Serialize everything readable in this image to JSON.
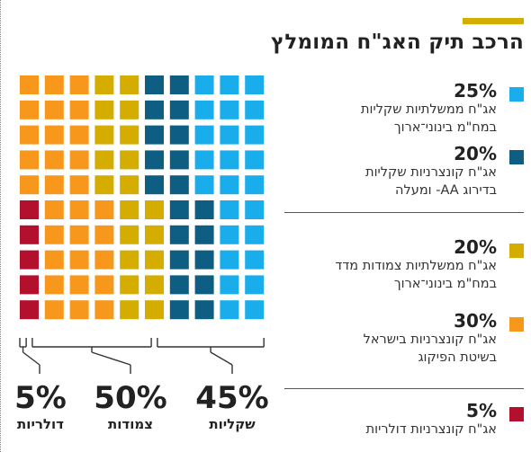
{
  "title": "הרכב תיק האג\"ח המומלץ",
  "colors": {
    "accent": "#d4ad00",
    "gov_long": "#19aeeb",
    "corp_aa": "#0d5e82",
    "gov_cpi": "#d4ad00",
    "corp_israel": "#f7981d",
    "corp_dollar": "#b3102e",
    "bracket": "#333333"
  },
  "legend": [
    {
      "pct": "25%",
      "desc": "אג\"ח ממשלתיות שקליות\nבמח\"מ בינוני־ארוך",
      "color_key": "gov_long"
    },
    {
      "pct": "20%",
      "desc": "אג\"ח קונצרניות שקליות\nבדירוג AA- ומעלה",
      "color_key": "corp_aa"
    },
    {
      "pct": "20%",
      "desc": "אג\"ח ממשלתיות צמודות מדד\nבמח\"מ בינוני־ארוך",
      "color_key": "gov_cpi"
    },
    {
      "pct": "30%",
      "desc": "אג\"ח קונצרניות בישראל\nבשיטת הפיקוג",
      "color_key": "corp_israel"
    },
    {
      "pct": "5%",
      "desc": "אג\"ח קונצרניות דולריות",
      "color_key": "corp_dollar"
    }
  ],
  "groups": [
    {
      "pct": "5%",
      "name": "דולריות"
    },
    {
      "pct": "50%",
      "name": "צמודות"
    },
    {
      "pct": "45%",
      "name": "שקליות"
    }
  ],
  "chart_data": {
    "type": "waffle",
    "grid": {
      "rows": 10,
      "cols": 10
    },
    "series": [
      {
        "name": "אג\"ח קונצרניות דולריות",
        "value": 5
      },
      {
        "name": "אג\"ח קונצרניות בישראל בשיטת הפיקוג",
        "value": 30
      },
      {
        "name": "אג\"ח ממשלתיות צמודות מדד במח\"מ בינוני־ארוך",
        "value": 20
      },
      {
        "name": "אג\"ח קונצרניות שקליות בדירוג AA- ומעלה",
        "value": 20
      },
      {
        "name": "אג\"ח ממשלתיות שקליות במח\"מ בינוני־ארוך",
        "value": 25
      }
    ],
    "groups": [
      {
        "name": "דולריות",
        "value": 5
      },
      {
        "name": "צמודות",
        "value": 50
      },
      {
        "name": "שקליות",
        "value": 45
      }
    ]
  }
}
